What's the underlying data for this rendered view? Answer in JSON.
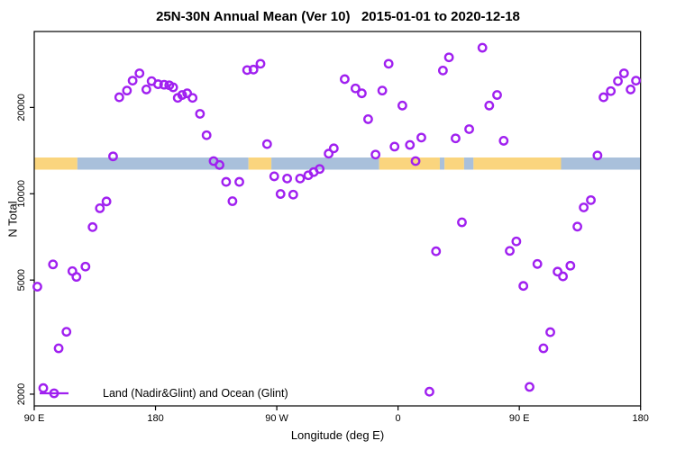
{
  "title": "25N-30N Annual Mean (Ver 10)   2015-01-01 to 2020-12-18",
  "colors": {
    "points": "#A020F0",
    "land_strip": "#FAD57E",
    "ocean_strip": "#A9C0DB",
    "axis": "#000000",
    "background": "#ffffff"
  },
  "chart_data": {
    "type": "scatter",
    "title": "25N-30N Annual Mean (Ver 10)   2015-01-01 to 2020-12-18",
    "xlabel": "Longitude (deg E)",
    "ylabel": "N Total",
    "x_axis": {
      "range_deg": [
        90,
        540
      ],
      "note": "longitude axis starts at 90E and wraps eastward around the globe; 450-540 repeats 90E-180",
      "ticks": [
        {
          "deg": 90,
          "label": "90 E"
        },
        {
          "deg": 180,
          "label": "180"
        },
        {
          "deg": 270,
          "label": "90 W"
        },
        {
          "deg": 360,
          "label": "0"
        },
        {
          "deg": 450,
          "label": "90 E"
        },
        {
          "deg": 540,
          "label": "180"
        }
      ]
    },
    "y_axis": {
      "scale": "log10",
      "range": [
        1820,
        36800
      ],
      "ticks": [
        {
          "value": 2000,
          "label": "2000"
        },
        {
          "value": 5000,
          "label": "5000"
        },
        {
          "value": 10000,
          "label": "10000"
        },
        {
          "value": 20000,
          "label": "20000"
        }
      ]
    },
    "legend": {
      "position": "bottom-left",
      "entries": [
        {
          "label": "Land (Nadir&Glint) and Ocean (Glint)",
          "marker": "open-circle-on-line",
          "color": "#A020F0"
        }
      ]
    },
    "map_strip": {
      "description": "land/ocean surface strip drawn across the plot",
      "value_center": 12800,
      "land_color": "#FAD57E",
      "ocean_color": "#A9C0DB",
      "segments": [
        {
          "surface": "land",
          "from_deg": 90,
          "to_deg": 122
        },
        {
          "surface": "ocean",
          "from_deg": 122,
          "to_deg": 249
        },
        {
          "surface": "land",
          "from_deg": 249,
          "to_deg": 266
        },
        {
          "surface": "ocean",
          "from_deg": 266,
          "to_deg": 346
        },
        {
          "surface": "land",
          "from_deg": 346,
          "to_deg": 391
        },
        {
          "surface": "ocean",
          "from_deg": 391,
          "to_deg": 394.5
        },
        {
          "surface": "land",
          "from_deg": 394.5,
          "to_deg": 409
        },
        {
          "surface": "ocean",
          "from_deg": 409,
          "to_deg": 416
        },
        {
          "surface": "land",
          "from_deg": 416,
          "to_deg": 481
        },
        {
          "surface": "ocean",
          "from_deg": 481,
          "to_deg": 540
        }
      ]
    },
    "series": [
      {
        "name": "Land (Nadir&Glint) and Ocean (Glint)",
        "color": "#A020F0",
        "marker": "open-circle",
        "points": [
          [
            92.3,
            4740
          ],
          [
            96.7,
            2100
          ],
          [
            103.9,
            5670
          ],
          [
            108.1,
            2890
          ],
          [
            113.9,
            3300
          ],
          [
            118.3,
            5370
          ],
          [
            121.3,
            5130
          ],
          [
            128.0,
            5570
          ],
          [
            133.3,
            7650
          ],
          [
            138.7,
            8900
          ],
          [
            143.6,
            9400
          ],
          [
            148.5,
            13500
          ],
          [
            153.1,
            21700
          ],
          [
            158.8,
            22900
          ],
          [
            163.0,
            24800
          ],
          [
            168.1,
            26300
          ],
          [
            173.2,
            23100
          ],
          [
            177.1,
            24700
          ],
          [
            181.9,
            24100
          ],
          [
            186.4,
            24000
          ],
          [
            190.2,
            23900
          ],
          [
            193.1,
            23500
          ],
          [
            196.5,
            21600
          ],
          [
            199.8,
            22100
          ],
          [
            203.5,
            22400
          ],
          [
            207.5,
            21600
          ],
          [
            213.0,
            19000
          ],
          [
            217.9,
            16000
          ],
          [
            223.1,
            13000
          ],
          [
            227.5,
            12600
          ],
          [
            232.4,
            11000
          ],
          [
            237.1,
            9420
          ],
          [
            242.2,
            11000
          ],
          [
            248.0,
            27000
          ],
          [
            252.7,
            27100
          ],
          [
            257.9,
            28400
          ],
          [
            262.8,
            14900
          ],
          [
            268.1,
            11500
          ],
          [
            272.8,
            9980
          ],
          [
            277.7,
            11300
          ],
          [
            282.2,
            9930
          ],
          [
            287.3,
            11300
          ],
          [
            293.4,
            11600
          ],
          [
            297.4,
            11900
          ],
          [
            301.8,
            12200
          ],
          [
            308.5,
            13800
          ],
          [
            312.3,
            14400
          ],
          [
            320.4,
            25100
          ],
          [
            328.4,
            23300
          ],
          [
            333.1,
            22400
          ],
          [
            337.8,
            18200
          ],
          [
            343.3,
            13700
          ],
          [
            348.3,
            22900
          ],
          [
            353.0,
            28400
          ],
          [
            357.4,
            14600
          ],
          [
            363.2,
            20300
          ],
          [
            368.8,
            14800
          ],
          [
            373.0,
            13000
          ],
          [
            377.3,
            15700
          ],
          [
            383.3,
            2040
          ],
          [
            388.2,
            6300
          ],
          [
            393.3,
            26900
          ],
          [
            397.8,
            29900
          ],
          [
            402.7,
            15600
          ],
          [
            407.4,
            7950
          ],
          [
            412.8,
            16800
          ],
          [
            422.6,
            32300
          ],
          [
            427.7,
            20300
          ],
          [
            433.5,
            22100
          ],
          [
            438.4,
            15300
          ],
          [
            442.9,
            6320
          ],
          [
            447.8,
            6820
          ],
          [
            453.0,
            4770
          ],
          [
            457.6,
            2120
          ],
          [
            463.4,
            5690
          ],
          [
            467.9,
            2890
          ],
          [
            473.0,
            3290
          ],
          [
            478.4,
            5350
          ],
          [
            482.4,
            5150
          ],
          [
            487.9,
            5610
          ],
          [
            493.1,
            7680
          ],
          [
            497.8,
            8960
          ],
          [
            503.1,
            9500
          ],
          [
            508.0,
            13600
          ],
          [
            512.5,
            21700
          ],
          [
            517.9,
            22800
          ],
          [
            523.2,
            24700
          ],
          [
            527.7,
            26300
          ],
          [
            532.6,
            23100
          ],
          [
            536.6,
            24800
          ]
        ]
      }
    ]
  }
}
